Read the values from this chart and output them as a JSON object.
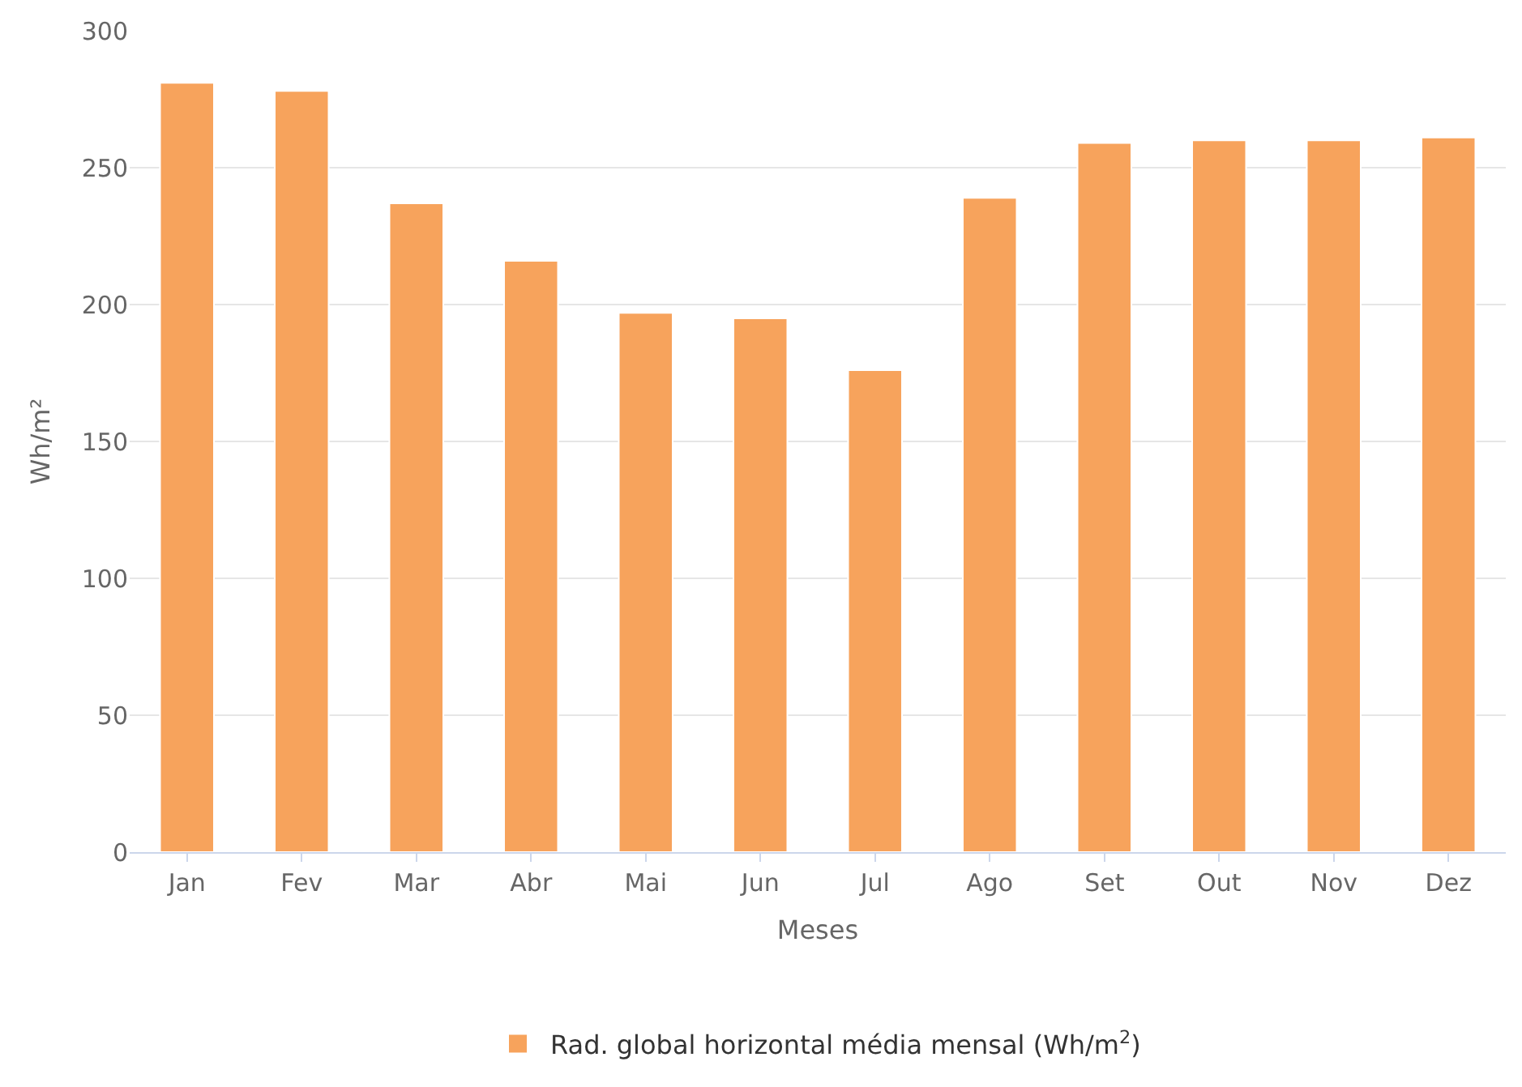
{
  "chart_data": {
    "type": "bar",
    "xlabel": "Meses",
    "ylabel": "Wh/m²",
    "categories": [
      "Jan",
      "Fev",
      "Mar",
      "Abr",
      "Mai",
      "Jun",
      "Jul",
      "Ago",
      "Set",
      "Out",
      "Nov",
      "Dez"
    ],
    "series": [
      {
        "name": "Rad. global horizontal média mensal (Wh/m$^{2}$)",
        "color": "#f7a35c",
        "values": [
          281,
          278,
          237,
          216,
          197,
          195,
          176,
          239,
          259,
          260,
          260,
          261
        ]
      }
    ],
    "ylim": [
      0,
      300
    ],
    "yticks": [
      0,
      50,
      100,
      150,
      200,
      250,
      300
    ],
    "grid": "y",
    "legend": "bottom"
  }
}
